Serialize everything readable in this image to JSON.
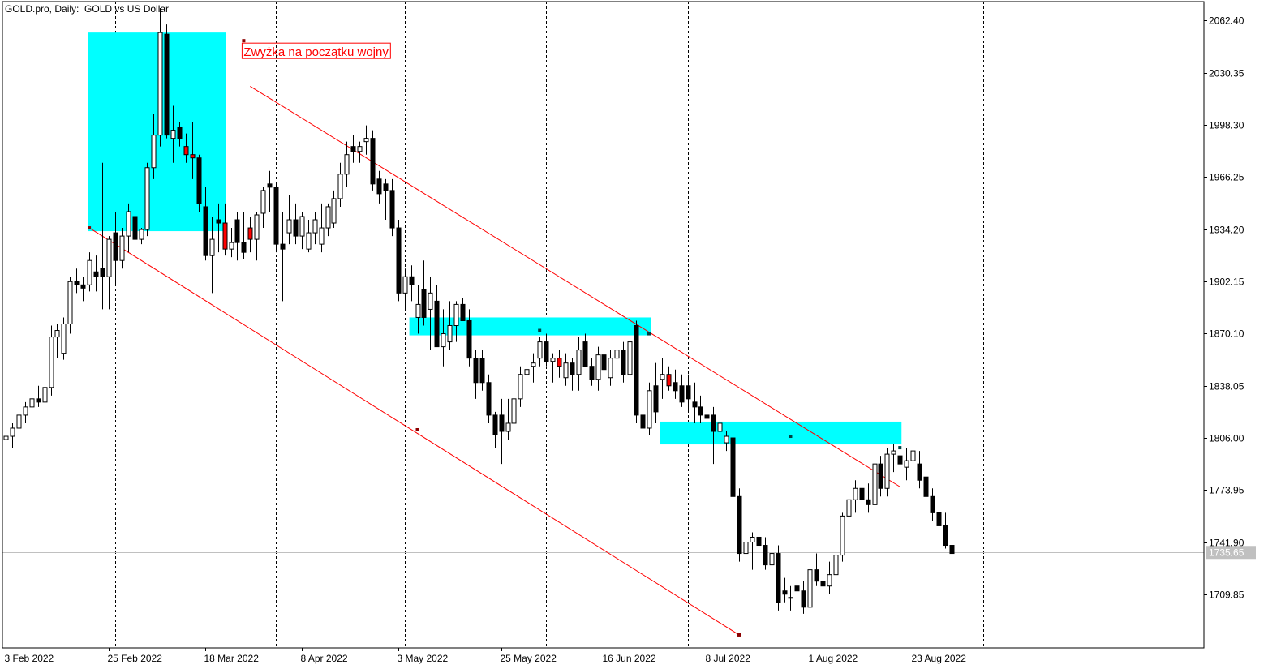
{
  "window": {
    "title": "GOLD.pro, Daily:  GOLD vs US Dollar"
  },
  "colors": {
    "background": "#ffffff",
    "grid": "#000000",
    "bull_body": "#ffffff",
    "bear_body": "#000000",
    "highlight_bear": "#ff0000",
    "zone_fill": "#00ffff",
    "channel_line": "#ff0000",
    "price_line": "#c0c0c0",
    "price_tag_bg": "#c0c0c0"
  },
  "chart_data": {
    "type": "candlestick",
    "title": "GOLD.pro, Daily:  GOLD vs US Dollar",
    "symbol": "GOLD.pro",
    "timeframe": "Daily",
    "ylim": [
      1677,
      2074
    ],
    "y_ticks": [
      "2062.40",
      "2030.35",
      "1998.30",
      "1966.25",
      "1934.20",
      "1902.15",
      "1870.10",
      "1838.05",
      "1806.00",
      "1773.95",
      "1741.90",
      "1709.85"
    ],
    "x_ticks": [
      {
        "label": "3 Feb 2022",
        "bar": 0
      },
      {
        "label": "25 Feb 2022",
        "bar": 16
      },
      {
        "label": "18 Mar 2022",
        "bar": 31
      },
      {
        "label": "8 Apr 2022",
        "bar": 46
      },
      {
        "label": "3 May 2022",
        "bar": 61
      },
      {
        "label": "25 May 2022",
        "bar": 77
      },
      {
        "label": "16 Jun 2022",
        "bar": 93
      },
      {
        "label": "8 Jul 2022",
        "bar": 109
      },
      {
        "label": "1 Aug 2022",
        "bar": 125
      },
      {
        "label": "23 Aug 2022",
        "bar": 141
      }
    ],
    "vgrid_bars": [
      17,
      42,
      62,
      84,
      106,
      127,
      152
    ],
    "current_price": "1735.65",
    "current_price_value": 1735.65,
    "candles": [
      [
        1805,
        1812,
        1790,
        1807
      ],
      [
        1807,
        1815,
        1800,
        1812
      ],
      [
        1812,
        1823,
        1808,
        1820
      ],
      [
        1820,
        1828,
        1815,
        1825
      ],
      [
        1825,
        1832,
        1818,
        1830
      ],
      [
        1830,
        1838,
        1825,
        1828
      ],
      [
        1828,
        1842,
        1822,
        1837
      ],
      [
        1837,
        1875,
        1832,
        1868
      ],
      [
        1868,
        1876,
        1855,
        1872
      ],
      [
        1858,
        1880,
        1854,
        1876
      ],
      [
        1876,
        1905,
        1870,
        1902
      ],
      [
        1902,
        1910,
        1895,
        1900
      ],
      [
        1900,
        1905,
        1890,
        1898
      ],
      [
        1900,
        1920,
        1896,
        1915
      ],
      [
        1908,
        1918,
        1896,
        1905
      ],
      [
        1910,
        1975,
        1885,
        1905
      ],
      [
        1905,
        1930,
        1885,
        1928
      ],
      [
        1932,
        1945,
        1900,
        1915
      ],
      [
        1915,
        1935,
        1910,
        1930
      ],
      [
        1930,
        1950,
        1920,
        1945
      ],
      [
        1942,
        1950,
        1925,
        1928
      ],
      [
        1928,
        1935,
        1925,
        1934
      ],
      [
        1934,
        1975,
        1930,
        1972
      ],
      [
        1972,
        2005,
        1965,
        1992
      ],
      [
        1992,
        2070,
        1985,
        2055
      ],
      [
        2054,
        2060,
        1990,
        1992
      ],
      [
        1990,
        2010,
        1975,
        1995
      ],
      [
        1997,
        2000,
        1985,
        1990
      ],
      [
        1985,
        1993,
        1975,
        1980
      ],
      [
        1980,
        2000,
        1965,
        1978
      ],
      [
        1978,
        1980,
        1945,
        1950
      ],
      [
        1948,
        1960,
        1915,
        1918
      ],
      [
        1918,
        1942,
        1895,
        1928
      ],
      [
        1940,
        1950,
        1920,
        1938
      ],
      [
        1938,
        1950,
        1918,
        1922
      ],
      [
        1922,
        1935,
        1917,
        1926
      ],
      [
        1940,
        1945,
        1915,
        1926
      ],
      [
        1926,
        1945,
        1916,
        1920
      ],
      [
        1935,
        1942,
        1920,
        1928
      ],
      [
        1928,
        1945,
        1915,
        1943
      ],
      [
        1944,
        1960,
        1935,
        1958
      ],
      [
        1962,
        1970,
        1945,
        1960
      ],
      [
        1960,
        1963,
        1920,
        1925
      ],
      [
        1925,
        1945,
        1890,
        1922
      ],
      [
        1932,
        1955,
        1925,
        1940
      ],
      [
        1940,
        1950,
        1925,
        1930
      ],
      [
        1930,
        1945,
        1922,
        1942
      ],
      [
        1922,
        1940,
        1920,
        1932
      ],
      [
        1932,
        1945,
        1925,
        1940
      ],
      [
        1925,
        1950,
        1920,
        1935
      ],
      [
        1935,
        1950,
        1930,
        1948
      ],
      [
        1938,
        1958,
        1935,
        1953
      ],
      [
        1953,
        1975,
        1948,
        1968
      ],
      [
        1968,
        1988,
        1960,
        1980
      ],
      [
        1985,
        1992,
        1975,
        1982
      ],
      [
        1982,
        1988,
        1975,
        1985
      ],
      [
        1988,
        1998,
        1980,
        1990
      ],
      [
        1990,
        1995,
        1958,
        1962
      ],
      [
        1965,
        1970,
        1950,
        1956
      ],
      [
        1962,
        1965,
        1940,
        1958
      ],
      [
        1958,
        1965,
        1930,
        1935
      ],
      [
        1935,
        1940,
        1890,
        1895
      ],
      [
        1895,
        1910,
        1885,
        1905
      ],
      [
        1905,
        1912,
        1890,
        1900
      ],
      [
        1880,
        1900,
        1870,
        1888
      ],
      [
        1897,
        1915,
        1875,
        1880
      ],
      [
        1885,
        1905,
        1860,
        1895
      ],
      [
        1890,
        1900,
        1865,
        1862
      ],
      [
        1862,
        1885,
        1850,
        1870
      ],
      [
        1865,
        1890,
        1860,
        1875
      ],
      [
        1875,
        1890,
        1865,
        1888
      ],
      [
        1888,
        1892,
        1878,
        1878
      ],
      [
        1878,
        1885,
        1850,
        1855
      ],
      [
        1855,
        1860,
        1830,
        1840
      ],
      [
        1855,
        1860,
        1835,
        1840
      ],
      [
        1840,
        1845,
        1815,
        1820
      ],
      [
        1820,
        1822,
        1800,
        1808
      ],
      [
        1820,
        1830,
        1790,
        1810
      ],
      [
        1810,
        1830,
        1805,
        1815
      ],
      [
        1815,
        1840,
        1805,
        1830
      ],
      [
        1830,
        1850,
        1825,
        1845
      ],
      [
        1845,
        1860,
        1835,
        1848
      ],
      [
        1850,
        1858,
        1840,
        1852
      ],
      [
        1855,
        1868,
        1850,
        1865
      ],
      [
        1865,
        1870,
        1850,
        1853
      ],
      [
        1853,
        1858,
        1840,
        1855
      ],
      [
        1855,
        1860,
        1843,
        1850
      ],
      [
        1843,
        1858,
        1838,
        1852
      ],
      [
        1852,
        1855,
        1835,
        1845
      ],
      [
        1845,
        1868,
        1835,
        1860
      ],
      [
        1865,
        1870,
        1850,
        1850
      ],
      [
        1850,
        1855,
        1838,
        1842
      ],
      [
        1842,
        1862,
        1835,
        1857
      ],
      [
        1857,
        1862,
        1842,
        1848
      ],
      [
        1843,
        1860,
        1838,
        1855
      ],
      [
        1855,
        1868,
        1845,
        1860
      ],
      [
        1860,
        1865,
        1840,
        1845
      ],
      [
        1845,
        1870,
        1840,
        1865
      ],
      [
        1875,
        1878,
        1815,
        1820
      ],
      [
        1820,
        1830,
        1808,
        1812
      ],
      [
        1812,
        1840,
        1808,
        1835
      ],
      [
        1838,
        1852,
        1815,
        1822
      ],
      [
        1842,
        1855,
        1830,
        1845
      ],
      [
        1845,
        1850,
        1835,
        1838
      ],
      [
        1840,
        1848,
        1830,
        1835
      ],
      [
        1838,
        1845,
        1825,
        1828
      ],
      [
        1838,
        1845,
        1822,
        1830
      ],
      [
        1828,
        1840,
        1815,
        1825
      ],
      [
        1825,
        1832,
        1815,
        1820
      ],
      [
        1820,
        1830,
        1815,
        1818
      ],
      [
        1820,
        1825,
        1790,
        1810
      ],
      [
        1810,
        1818,
        1795,
        1815
      ],
      [
        1803,
        1810,
        1798,
        1807
      ],
      [
        1806,
        1810,
        1765,
        1770
      ],
      [
        1770,
        1775,
        1730,
        1735
      ],
      [
        1735,
        1745,
        1720,
        1742
      ],
      [
        1742,
        1748,
        1725,
        1745
      ],
      [
        1745,
        1752,
        1730,
        1740
      ],
      [
        1740,
        1745,
        1725,
        1728
      ],
      [
        1728,
        1738,
        1720,
        1735
      ],
      [
        1735,
        1740,
        1700,
        1705
      ],
      [
        1712,
        1720,
        1705,
        1710
      ],
      [
        1708,
        1715,
        1700,
        1708
      ],
      [
        1715,
        1720,
        1706,
        1712
      ],
      [
        1712,
        1718,
        1698,
        1702
      ],
      [
        1702,
        1730,
        1690,
        1725
      ],
      [
        1725,
        1735,
        1715,
        1718
      ],
      [
        1718,
        1725,
        1710,
        1715
      ],
      [
        1715,
        1730,
        1710,
        1722
      ],
      [
        1722,
        1738,
        1715,
        1734
      ],
      [
        1734,
        1760,
        1730,
        1758
      ],
      [
        1758,
        1770,
        1750,
        1768
      ],
      [
        1768,
        1780,
        1760,
        1775
      ],
      [
        1775,
        1780,
        1765,
        1768
      ],
      [
        1768,
        1778,
        1760,
        1765
      ],
      [
        1765,
        1795,
        1762,
        1790
      ],
      [
        1790,
        1795,
        1770,
        1775
      ],
      [
        1775,
        1800,
        1770,
        1796
      ],
      [
        1796,
        1802,
        1785,
        1798
      ],
      [
        1795,
        1800,
        1780,
        1790
      ],
      [
        1788,
        1800,
        1780,
        1792
      ],
      [
        1792,
        1808,
        1788,
        1798
      ],
      [
        1790,
        1798,
        1775,
        1780
      ],
      [
        1782,
        1790,
        1768,
        1770
      ],
      [
        1770,
        1775,
        1755,
        1760
      ],
      [
        1760,
        1768,
        1748,
        1752
      ],
      [
        1752,
        1760,
        1738,
        1740
      ],
      [
        1740,
        1745,
        1728,
        1735
      ]
    ],
    "highlighted_bars": [
      18,
      26,
      28,
      29,
      34,
      38,
      64,
      86,
      103,
      130
    ],
    "zones": [
      {
        "bar_start": 13,
        "bar_end": 34,
        "y_top": 2055,
        "y_bottom": 1933
      },
      {
        "bar_start": 63,
        "bar_end": 100,
        "y_top": 1880,
        "y_bottom": 1869
      },
      {
        "bar_start": 102,
        "bar_end": 139,
        "y_top": 1816,
        "y_bottom": 1802
      }
    ],
    "channel_lines": [
      {
        "p1": {
          "bar": 13,
          "price": 1935
        },
        "p2": {
          "bar": 114,
          "price": 1685
        }
      },
      {
        "p1": {
          "bar": 38,
          "price": 2022
        },
        "p2": {
          "bar": 139,
          "price": 1776
        }
      }
    ],
    "points": [
      {
        "bar": 13,
        "price": 1935,
        "color": "#8b0000"
      },
      {
        "bar": 37,
        "price": 2050,
        "color": "#8b0000"
      },
      {
        "bar": 64,
        "price": 1811,
        "color": "#8b0000"
      },
      {
        "bar": 114,
        "price": 1685,
        "color": "#8b0000"
      },
      {
        "bar": 83,
        "price": 1872,
        "color": "#004040"
      },
      {
        "bar": 100,
        "price": 1870,
        "color": "#004040"
      },
      {
        "bar": 122,
        "price": 1807,
        "color": "#004040"
      },
      {
        "bar": 139,
        "price": 1800,
        "color": "#004040"
      }
    ],
    "annotation": {
      "text": "Zwyżka na początku wojny",
      "bar": 37,
      "price": 2050
    }
  }
}
